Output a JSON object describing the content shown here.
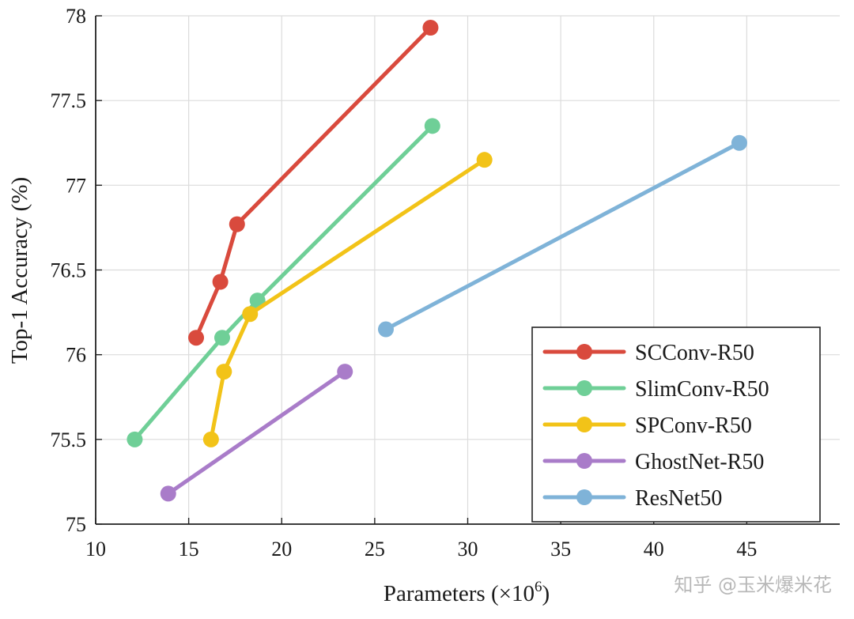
{
  "chart_data": {
    "type": "line",
    "title": "",
    "xlabel": "Parameters (×10",
    "xlabel_sup": "6",
    "xlabel_close": ")",
    "ylabel": "Top-1 Accuracy (%)",
    "xlim": [
      10,
      50
    ],
    "ylim": [
      75,
      78
    ],
    "xticks": [
      10,
      15,
      20,
      25,
      30,
      35,
      40,
      45
    ],
    "yticks": [
      75,
      75.5,
      76,
      76.5,
      77,
      77.5,
      78
    ],
    "grid": true,
    "legend_position": "bottom-right",
    "series": [
      {
        "name": "SCConv-R50",
        "color": "#d94a3d",
        "points": [
          [
            15.4,
            76.1
          ],
          [
            16.7,
            76.43
          ],
          [
            17.6,
            76.77
          ],
          [
            28.0,
            77.93
          ]
        ]
      },
      {
        "name": "SlimConv-R50",
        "color": "#6fcf97",
        "points": [
          [
            12.1,
            75.5
          ],
          [
            16.8,
            76.1
          ],
          [
            18.7,
            76.32
          ],
          [
            28.1,
            77.35
          ]
        ]
      },
      {
        "name": "SPConv-R50",
        "color": "#f2c318",
        "points": [
          [
            16.2,
            75.5
          ],
          [
            16.9,
            75.9
          ],
          [
            18.3,
            76.24
          ],
          [
            30.9,
            77.15
          ]
        ]
      },
      {
        "name": "GhostNet-R50",
        "color": "#a97cc9",
        "points": [
          [
            13.9,
            75.18
          ],
          [
            23.4,
            75.9
          ]
        ]
      },
      {
        "name": "ResNet50",
        "color": "#7fb3d8",
        "points": [
          [
            25.6,
            76.15
          ],
          [
            44.6,
            77.25
          ]
        ]
      }
    ]
  },
  "watermark": "知乎 @玉米爆米花"
}
